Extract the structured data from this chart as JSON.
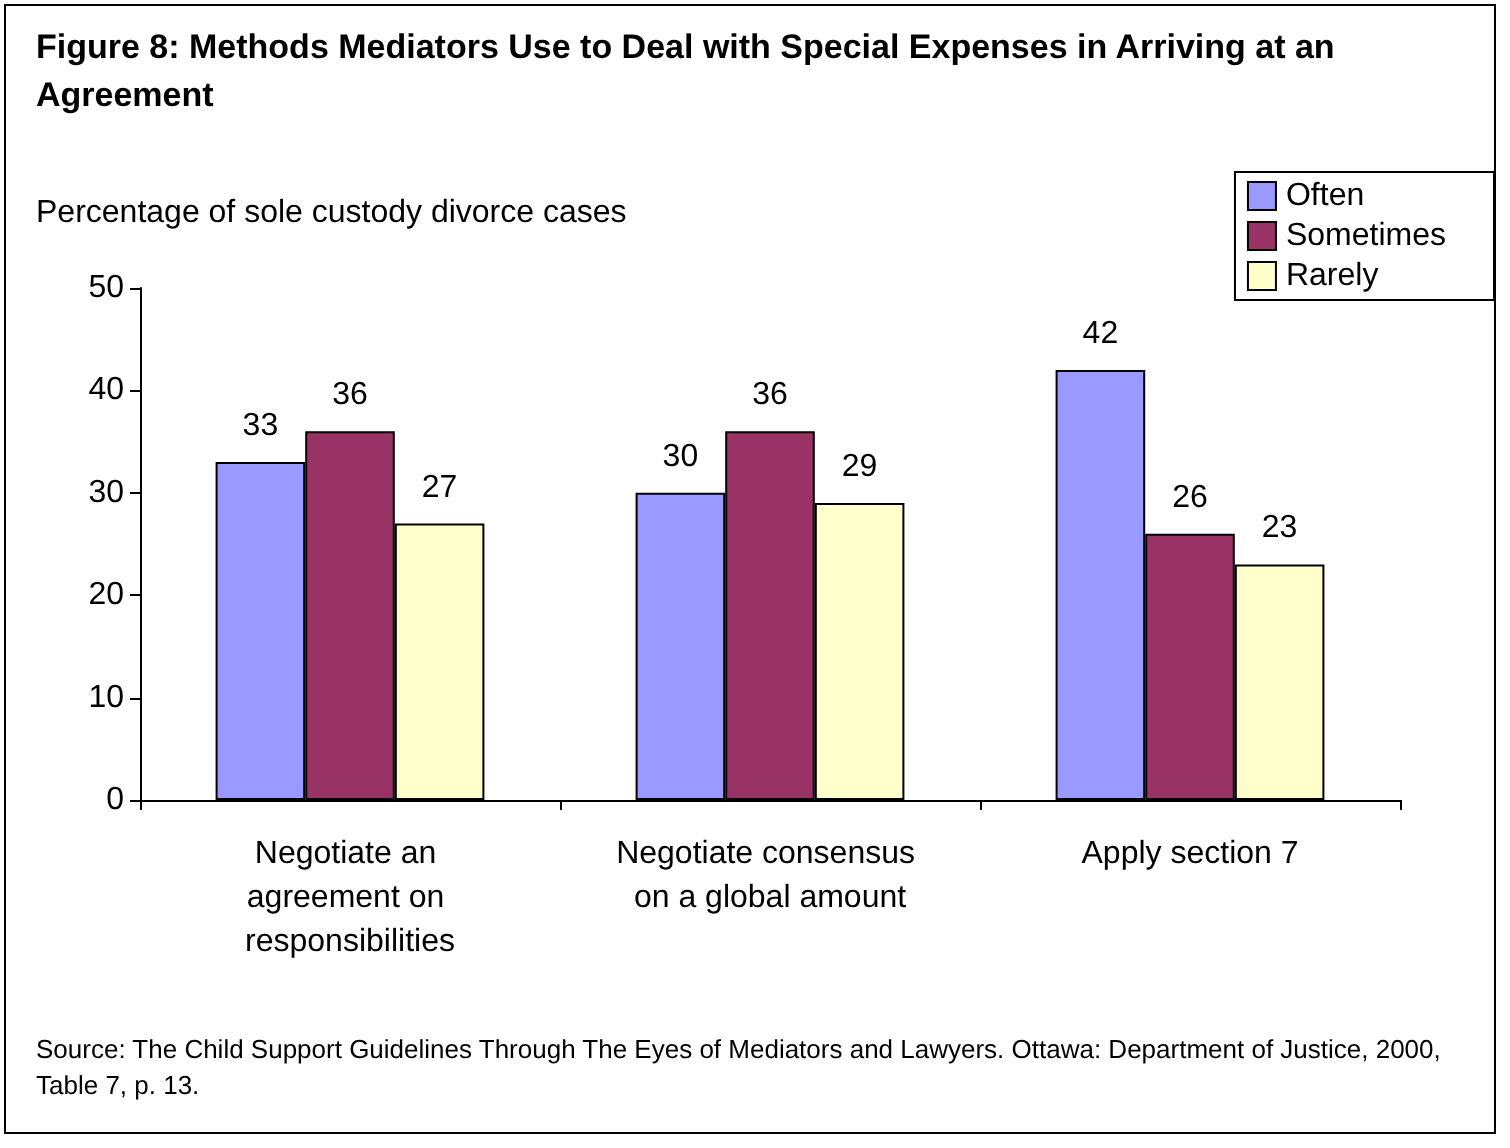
{
  "chart_data": {
    "type": "bar",
    "title": "Figure 8: Methods Mediators Use to Deal with Special Expenses in Arriving at an Agreement",
    "ylabel": "Percentage of sole custody divorce cases",
    "categories": [
      "Negotiate an agreement on responsibilities",
      "Negotiate consensus on a global amount",
      "Apply section 7"
    ],
    "series": [
      {
        "name": "Often",
        "color": "#9999ff",
        "values": [
          33,
          30,
          42
        ]
      },
      {
        "name": "Sometimes",
        "color": "#993366",
        "values": [
          36,
          36,
          26
        ]
      },
      {
        "name": "Rarely",
        "color": "#ffffcc",
        "values": [
          27,
          29,
          23
        ]
      }
    ],
    "ylim": [
      0,
      50
    ],
    "yticks": [
      0,
      10,
      20,
      30,
      40,
      50
    ],
    "data_labels": true,
    "legend": "top right",
    "annotations": [
      "Source: The Child Support Guidelines Through The Eyes of Mediators and Lawyers. Ottawa: Department of Justice, 2000, Table 7, p. 13."
    ]
  }
}
